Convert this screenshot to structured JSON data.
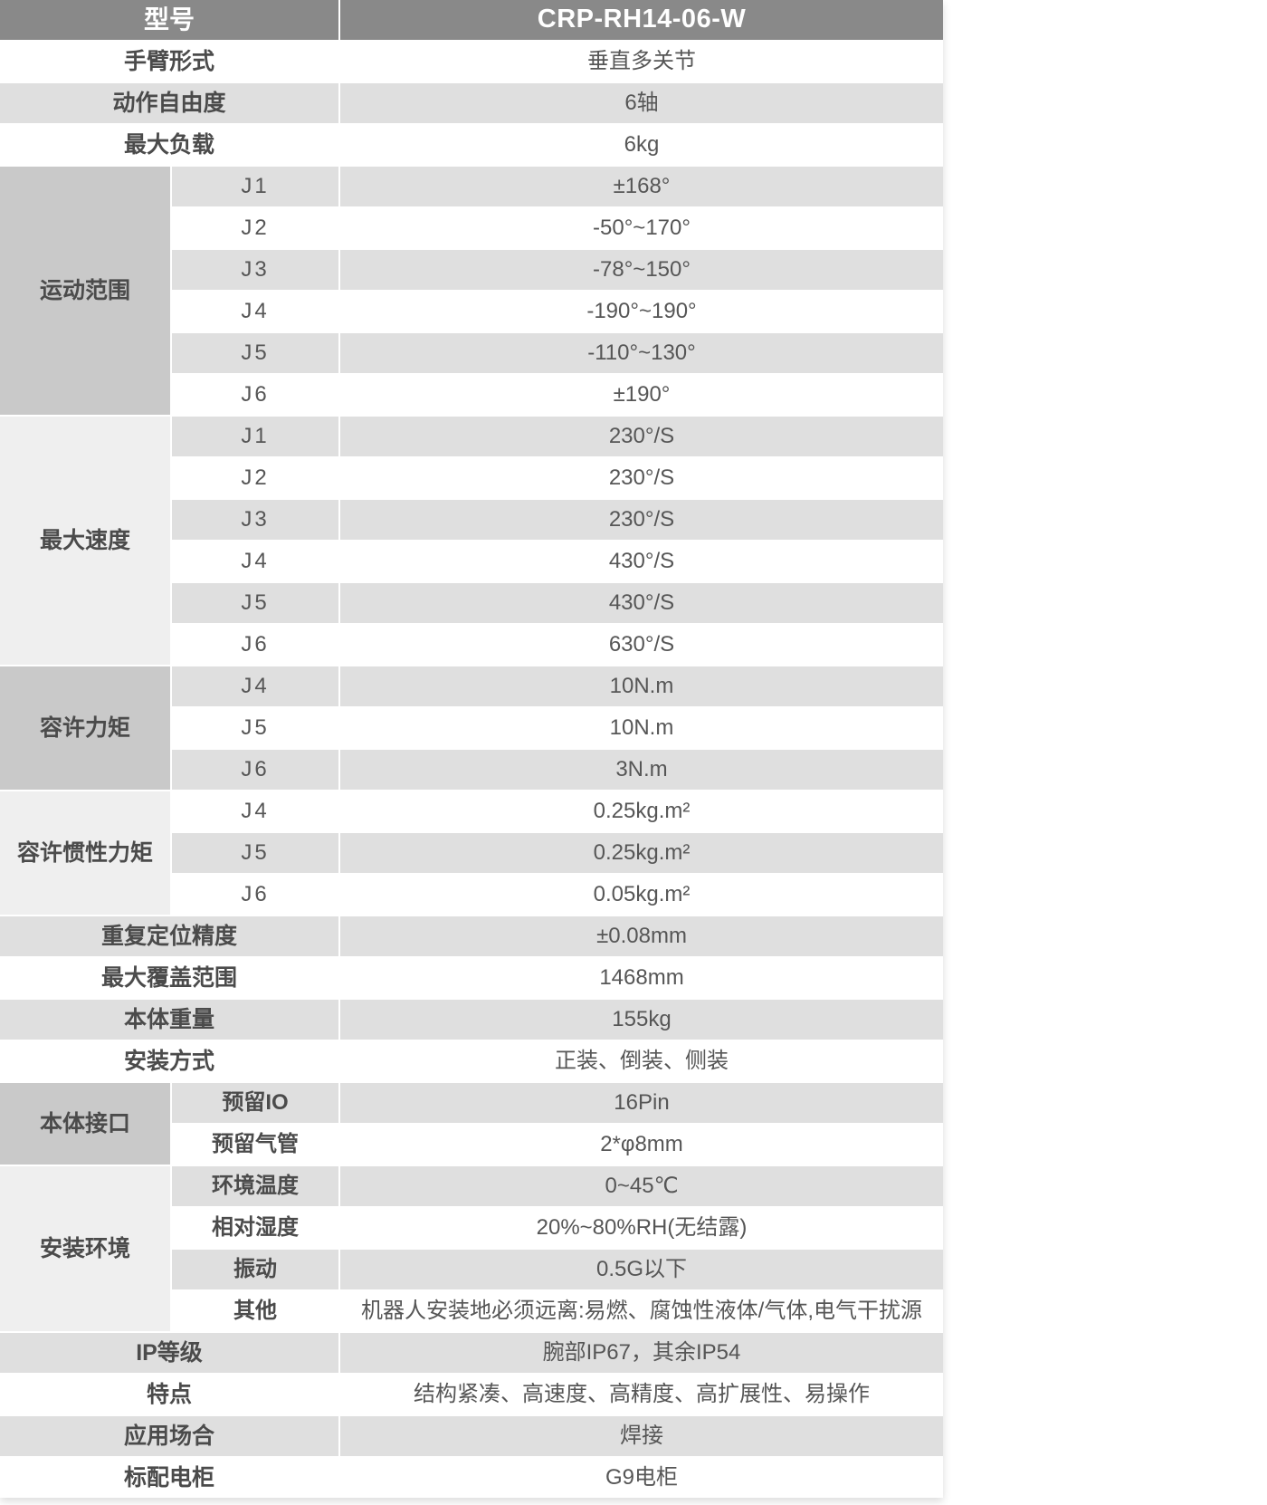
{
  "colors": {
    "header_bg": "#898989",
    "header_text": "#ffffff",
    "row_gray": "#dfdfdf",
    "row_white": "#ffffff",
    "group_dark": "#c9c9c9",
    "group_light": "#efefef",
    "label_text": "#4b4b4b",
    "value_text": "#565656"
  },
  "table": {
    "header": {
      "label": "型号",
      "value": "CRP-RH14-06-W"
    },
    "sections": [
      {
        "kind": "row",
        "label": "手臂形式",
        "value": "垂直多关节"
      },
      {
        "kind": "row",
        "label": "动作自由度",
        "value": "6轴"
      },
      {
        "kind": "row",
        "label": "最大负载",
        "value": "6kg"
      },
      {
        "kind": "group",
        "label": "运动范围",
        "items": [
          {
            "sub": "J1",
            "value": "±168°"
          },
          {
            "sub": "J2",
            "value": "-50°~170°"
          },
          {
            "sub": "J3",
            "value": "-78°~150°"
          },
          {
            "sub": "J4",
            "value": "-190°~190°"
          },
          {
            "sub": "J5",
            "value": "-110°~130°"
          },
          {
            "sub": "J6",
            "value": "±190°"
          }
        ]
      },
      {
        "kind": "group",
        "label": "最大速度",
        "items": [
          {
            "sub": "J1",
            "value": "230°/S"
          },
          {
            "sub": "J2",
            "value": "230°/S"
          },
          {
            "sub": "J3",
            "value": "230°/S"
          },
          {
            "sub": "J4",
            "value": "430°/S"
          },
          {
            "sub": "J5",
            "value": "430°/S"
          },
          {
            "sub": "J6",
            "value": "630°/S"
          }
        ]
      },
      {
        "kind": "group",
        "label": "容许力矩",
        "items": [
          {
            "sub": "J4",
            "value": "10N.m"
          },
          {
            "sub": "J5",
            "value": "10N.m"
          },
          {
            "sub": "J6",
            "value": "3N.m"
          }
        ]
      },
      {
        "kind": "group",
        "label": "容许惯性力矩",
        "items": [
          {
            "sub": "J4",
            "value": "0.25kg.m²"
          },
          {
            "sub": "J5",
            "value": "0.25kg.m²"
          },
          {
            "sub": "J6",
            "value": "0.05kg.m²"
          }
        ]
      },
      {
        "kind": "row",
        "label": "重复定位精度",
        "value": "±0.08mm"
      },
      {
        "kind": "row",
        "label": "最大覆盖范围",
        "value": "1468mm"
      },
      {
        "kind": "row",
        "label": "本体重量",
        "value": "155kg"
      },
      {
        "kind": "row",
        "label": "安装方式",
        "value": "正装、倒装、侧装"
      },
      {
        "kind": "group",
        "label": "本体接口",
        "items": [
          {
            "sub": "预留IO",
            "value": "16Pin"
          },
          {
            "sub": "预留气管",
            "value": "2*φ8mm"
          }
        ]
      },
      {
        "kind": "group",
        "label": "安装环境",
        "items": [
          {
            "sub": "环境温度",
            "value": "0~45℃"
          },
          {
            "sub": "相对湿度",
            "value": "20%~80%RH(无结露)"
          },
          {
            "sub": "振动",
            "value": "0.5G以下"
          },
          {
            "sub": "其他",
            "value": "机器人安装地必须远离:易燃、腐蚀性液体/气体,电气干扰源"
          }
        ]
      },
      {
        "kind": "row",
        "label": "IP等级",
        "value": "腕部IP67，其余IP54"
      },
      {
        "kind": "row",
        "label": "特点",
        "value": "结构紧凑、高速度、高精度、高扩展性、易操作"
      },
      {
        "kind": "row",
        "label": "应用场合",
        "value": "焊接"
      },
      {
        "kind": "row",
        "label": "标配电柜",
        "value": "G9电柜"
      }
    ]
  }
}
